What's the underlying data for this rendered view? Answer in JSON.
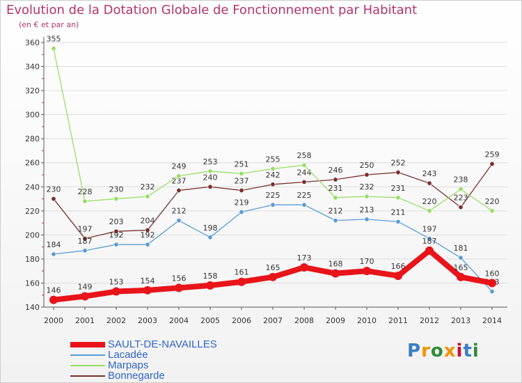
{
  "title": "Evolution de la Dotation Globale de Fonctionnement par Habitant",
  "subtitle": "(en € et par an)",
  "logo": {
    "text": "Proxiti",
    "colors": [
      "#3a7fc4",
      "#f39200",
      "#2e8b3a",
      "#f39200",
      "#c8102e",
      "#3a7fc4",
      "#2e8b3a"
    ]
  },
  "chart_data": {
    "type": "line",
    "title": "Evolution de la Dotation Globale de Fonctionnement par Habitant",
    "subtitle": "(en € et par an)",
    "x": [
      "2000",
      "2001",
      "2002",
      "2003",
      "2004",
      "2005",
      "2006",
      "2007",
      "2008",
      "2009",
      "2010",
      "2011",
      "2012",
      "2013",
      "2014"
    ],
    "ylim": [
      140,
      360
    ],
    "yticks": [
      140,
      160,
      180,
      200,
      220,
      240,
      260,
      280,
      300,
      320,
      340,
      360
    ],
    "grid": true,
    "legend_position": "bottom-left",
    "series": [
      {
        "name": "SAULT-DE-NAVAILLES",
        "color": "#e8141a",
        "values": [
          146,
          149,
          153,
          154,
          156,
          158,
          161,
          165,
          173,
          168,
          170,
          166,
          187,
          165,
          160
        ],
        "labels": [
          "146",
          "149",
          "153",
          "154",
          "156",
          "158",
          "161",
          "165",
          "173",
          "168",
          "170",
          "166",
          "187",
          "165",
          "160"
        ]
      },
      {
        "name": "Lacadée",
        "color": "#5b9bd5",
        "values": [
          184,
          187,
          192,
          192,
          212,
          198,
          219,
          225,
          225,
          212,
          213,
          211,
          197,
          181,
          153
        ],
        "labels": [
          "184",
          "187",
          "192",
          "192",
          "212",
          "198",
          "219",
          "225",
          "225",
          "212",
          "213",
          "211",
          "197",
          "181",
          "153"
        ]
      },
      {
        "name": "Marpaps",
        "color": "#99dd66",
        "values": [
          355,
          228,
          230,
          232,
          249,
          253,
          251,
          255,
          258,
          231,
          232,
          231,
          220,
          238,
          220
        ],
        "labels": [
          "355",
          "228",
          "230",
          "232",
          "249",
          "253",
          "251",
          "255",
          "258",
          "231",
          "232",
          "231",
          "220",
          "238",
          "220"
        ]
      },
      {
        "name": "Bonnegarde",
        "color": "#7a2e2e",
        "values": [
          230,
          197,
          203,
          204,
          237,
          240,
          237,
          242,
          244,
          246,
          250,
          252,
          243,
          223,
          259
        ],
        "labels": [
          "230",
          "197",
          "203",
          "204",
          "237",
          "240",
          "237",
          "242",
          "244",
          "246",
          "250",
          "252",
          "243",
          "223",
          "259"
        ]
      }
    ]
  }
}
